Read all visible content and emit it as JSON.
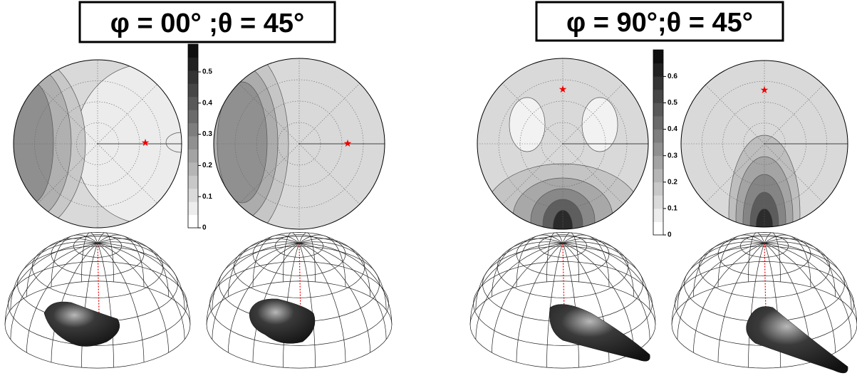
{
  "panels": [
    {
      "title": "φ = 00° ;θ = 45°",
      "colorbar_ticks": [
        0,
        0.1,
        0.2,
        0.3,
        0.4,
        0.5
      ]
    },
    {
      "title": "φ = 90°;θ = 45°",
      "colorbar_ticks": [
        0,
        0.1,
        0.2,
        0.3,
        0.4,
        0.5,
        0.6
      ]
    }
  ]
}
